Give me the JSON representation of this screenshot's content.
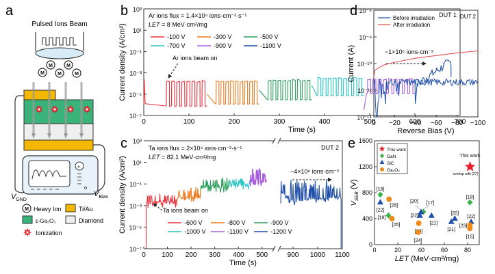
{
  "panel_a": {
    "label": "a",
    "title": "Pulsed Ions Beam",
    "ion_symbol": "M",
    "v_gnd": "V",
    "v_gnd_sub": "GND",
    "v_bias": "V",
    "v_bias_sub": "Bias",
    "legend": [
      {
        "label": "Heavy Ion",
        "kind": "ion"
      },
      {
        "label": "Ti/Au",
        "kind": "box",
        "color": "#f5b800"
      },
      {
        "label": "ε-Ga₂O₃",
        "kind": "box",
        "color": "#3ab37a"
      },
      {
        "label": "Diamond",
        "kind": "box",
        "color": "#eeeeee"
      },
      {
        "label": "Ionization",
        "kind": "burst",
        "color": "#e8202a"
      }
    ]
  },
  "chart_data": [
    {
      "id": "b",
      "type": "line",
      "panel_label": "b",
      "title": "",
      "annotation_flux": "Ar ions flux = 1.4×10⁴ ions·cm⁻²·s⁻¹",
      "annotation_let": "LET = 8 MeV·cm²/mg",
      "device": "DUT 1",
      "xlabel": "Time (s)",
      "ylabel": "Current density (A/cm²)",
      "xlim": [
        0,
        700
      ],
      "ylim_log10": [
        -7,
        3
      ],
      "xticks": [
        0,
        100,
        200,
        300,
        400,
        500,
        600,
        700
      ],
      "yticks": [
        "10⁻⁷",
        "10⁻⁵",
        "10⁻³",
        "10⁻¹",
        "10¹",
        "10³"
      ],
      "beam_on_label": "Ar ions beam on",
      "fluence_label": "~1×10⁶ ions·cm⁻²",
      "legend_position": "top-left",
      "series": [
        {
          "name": "-100 V",
          "color": "#e8323c",
          "t_start": 0,
          "t_end": 140,
          "baseline_log": -6.1,
          "peak_log": -3.9,
          "pulses": 8,
          "pulse_start": 50
        },
        {
          "name": "-300 V",
          "color": "#f07a1a",
          "t_start": 140,
          "t_end": 255,
          "baseline_log": -5.9,
          "peak_log": -3.9,
          "pulses": 9,
          "pulse_start": 160
        },
        {
          "name": "-500 V",
          "color": "#2ca05a",
          "t_start": 255,
          "t_end": 372,
          "baseline_log": -5.5,
          "peak_log": -3.8,
          "pulses": 9,
          "pulse_start": 275
        },
        {
          "name": "-700 V",
          "color": "#25c4c4",
          "t_start": 372,
          "t_end": 487,
          "baseline_log": -5.1,
          "peak_log": -3.6,
          "pulses": 9,
          "pulse_start": 385
        },
        {
          "name": "-900 V",
          "color": "#a860e0",
          "t_start": 487,
          "t_end": 600,
          "baseline_log": -4.9,
          "peak_log": -3.7,
          "pulses": 9,
          "pulse_start": 495
        },
        {
          "name": "-1100 V",
          "color": "#1f4fa8",
          "t_start": 600,
          "t_end": 680,
          "baseline_log": -4.5,
          "peak_log": -1.8,
          "pulses": 0,
          "pulse_start": 600
        }
      ]
    },
    {
      "id": "c",
      "type": "line",
      "panel_label": "c",
      "annotation_flux": "Ta ions flux = 2×10⁴ ions·cm⁻²·s⁻¹",
      "annotation_let": "LET = 82.1 MeV·cm²/mg",
      "device": "DUT 2",
      "xlabel": "Time (s)",
      "ylabel": "Current density (A/cm²)",
      "xlim_segments": [
        [
          0,
          550
        ],
        [
          850,
          1100
        ]
      ],
      "ylim_log10": [
        -7,
        3
      ],
      "xticks": [
        0,
        100,
        200,
        300,
        400,
        500,
        900,
        1000,
        1100
      ],
      "yticks": [
        "10⁻⁷",
        "10⁻⁵",
        "10⁻³",
        "10⁻¹",
        "10¹",
        "10³"
      ],
      "beam_on_label": "Ta ions beam on",
      "fluence_label": "~4×10⁶ ions·cm⁻²",
      "legend_position": "bottom-center",
      "series": [
        {
          "name": "-600 V",
          "color": "#e8323c",
          "t_start": 10,
          "t_end": 140,
          "baseline_log": -3.0,
          "peak_log": -2.0
        },
        {
          "name": "-800 V",
          "color": "#f07a1a",
          "t_start": 140,
          "t_end": 240,
          "baseline_log": -2.6,
          "peak_log": -1.4
        },
        {
          "name": "-900 V",
          "color": "#2ca05a",
          "t_start": 240,
          "t_end": 360,
          "baseline_log": -1.6,
          "peak_log": -0.5
        },
        {
          "name": "-1000 V",
          "color": "#25c4c4",
          "t_start": 360,
          "t_end": 450,
          "baseline_log": -1.3,
          "peak_log": -0.6
        },
        {
          "name": "-1100 V",
          "color": "#a860e0",
          "t_start": 450,
          "t_end": 520,
          "baseline_log": -1.2,
          "peak_log": 0.3
        },
        {
          "name": "-1200 V",
          "color": "#1f4fa8",
          "t_start": 850,
          "t_end": 1095,
          "baseline_log": -2.8,
          "peak_log": -0.8
        }
      ]
    },
    {
      "id": "d",
      "type": "line",
      "panel_label": "d",
      "device": "DUT 2",
      "xlabel": "Reverse Bias (V)",
      "ylabel": "Current (A)",
      "xlim": [
        0,
        -100
      ],
      "ylim_log10": [
        -14,
        -6
      ],
      "xticks": [
        "0",
        "−20",
        "−40",
        "−60",
        "−80",
        "−100"
      ],
      "yticks": [
        "10⁻¹⁴",
        "10⁻¹²",
        "10⁻¹⁰",
        "10⁻⁸",
        "10⁻⁶"
      ],
      "legend_position": "top-left",
      "series": [
        {
          "name": "Before irradiation",
          "color": "#1f4fa8",
          "level_log": -11.4,
          "noise": true
        },
        {
          "name": "After irradiation",
          "color": "#e05050",
          "x": [
            0,
            -1,
            -5,
            -10,
            -20,
            -40,
            -60,
            -80,
            -100
          ],
          "y_log": [
            -11.0,
            -10.5,
            -10.3,
            -10.1,
            -9.9,
            -9.6,
            -9.4,
            -9.2,
            -9.05
          ]
        }
      ]
    },
    {
      "id": "e",
      "type": "scatter",
      "panel_label": "e",
      "xlabel": "LET (MeV·cm²/mg)",
      "ylabel": "V_SEB (V)",
      "xlim": [
        0,
        90
      ],
      "ylim": [
        0,
        1600
      ],
      "xticks": [
        0,
        20,
        40,
        60,
        80
      ],
      "yticks": [
        0,
        400,
        800,
        1200,
        1600
      ],
      "legend_position": "top-left",
      "this_work_label": "This work",
      "overlap_note": "overlap with [27]",
      "series": [
        {
          "name": "This work",
          "marker": "star",
          "color": "#e8202a",
          "points": [
            {
              "x": 82.1,
              "y": 1200,
              "ref": ""
            }
          ]
        },
        {
          "name": "GaN",
          "marker": "diamond",
          "color": "#3ab34a",
          "points": [
            {
              "x": 5,
              "y": 770,
              "ref": "[18]"
            },
            {
              "x": 12,
              "y": 450,
              "ref": "[18]"
            },
            {
              "x": 42,
              "y": 505,
              "ref": "[17]"
            },
            {
              "x": 82,
              "y": 650,
              "ref": "[19]"
            }
          ]
        },
        {
          "name": "SiC",
          "marker": "triangle",
          "color": "#1f4fa8",
          "points": [
            {
              "x": 5,
              "y": 650,
              "ref": "[22]"
            },
            {
              "x": 39,
              "y": 445,
              "ref": "[22]"
            },
            {
              "x": 40,
              "y": 500,
              "ref": "[20]"
            },
            {
              "x": 49,
              "y": 445,
              "ref": "[21]"
            },
            {
              "x": 66,
              "y": 350,
              "ref": "[21]"
            },
            {
              "x": 69,
              "y": 400,
              "ref": "[20]"
            },
            {
              "x": 83,
              "y": 350,
              "ref": "[22]"
            }
          ]
        },
        {
          "name": "Ga₂O₃",
          "marker": "circle",
          "color": "#f08a1a",
          "points": [
            {
              "x": 12.5,
              "y": 700,
              "ref": "[28]"
            },
            {
              "x": 15,
              "y": 400,
              "ref": "[25]"
            },
            {
              "x": 38,
              "y": 330,
              "ref": "[26]"
            },
            {
              "x": 37.5,
              "y": 190,
              "ref": "[24]"
            },
            {
              "x": 82,
              "y": 300,
              "ref": "[23]"
            },
            {
              "x": 82,
              "y": 250,
              "ref": "[15]"
            }
          ]
        }
      ]
    }
  ]
}
